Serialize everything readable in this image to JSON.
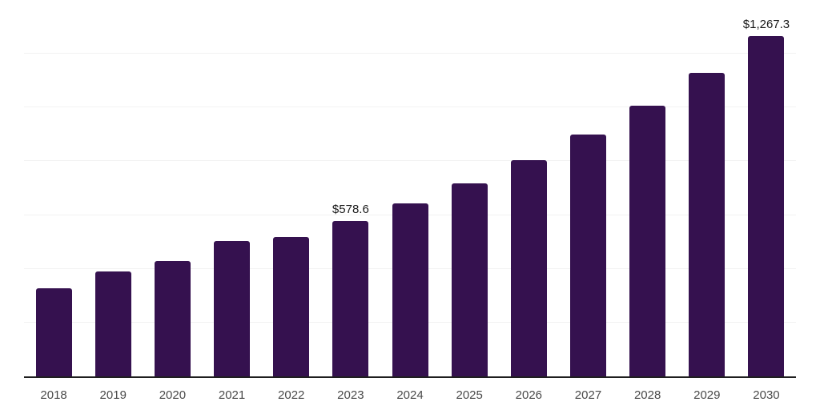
{
  "chart_data": {
    "type": "bar",
    "title": "",
    "xlabel": "",
    "ylabel": "",
    "categories": [
      "2018",
      "2019",
      "2020",
      "2021",
      "2022",
      "2023",
      "2024",
      "2025",
      "2026",
      "2027",
      "2028",
      "2029",
      "2030"
    ],
    "values": [
      327,
      390,
      429,
      503,
      518,
      578.6,
      644,
      719,
      804,
      899,
      1006,
      1128,
      1267.3
    ],
    "data_labels": [
      {
        "category": "2023",
        "text": "$578.6"
      },
      {
        "category": "2030",
        "text": "$1,267.3"
      }
    ],
    "ylim": [
      0,
      1400
    ],
    "grid": true,
    "gridline_step": 200,
    "legend": false,
    "colors": {
      "bar": "#35114F",
      "axis_line": "#1F1F1F",
      "gridline": "#F2F2F2",
      "tick_label": "#4A4A4A",
      "data_label": "#1A1A1A",
      "background": "#FFFFFF"
    }
  }
}
